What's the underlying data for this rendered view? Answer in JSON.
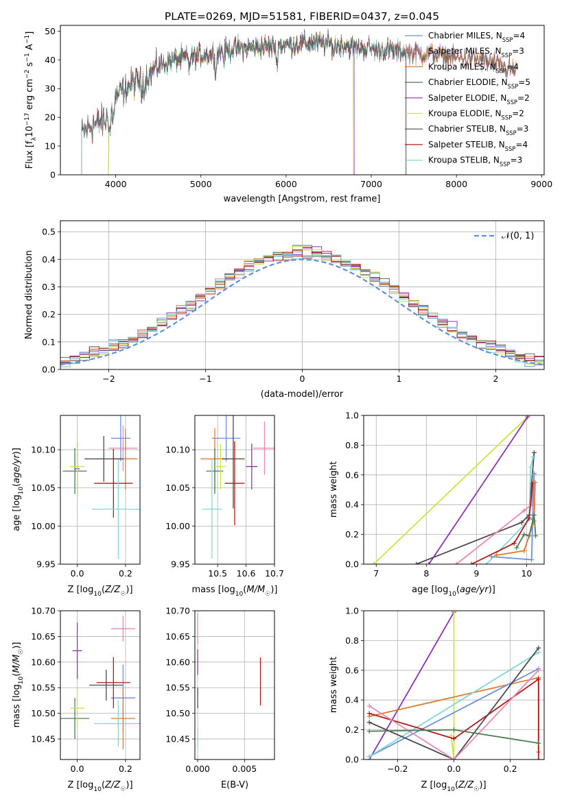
{
  "figure_title": "PLATE=0269, MJD=51581, FIBERID=0437, z=0.045",
  "colors": {
    "Chabrier MILES": "#6a8ee0",
    "Salpeter MILES": "#e887b0",
    "Kroupa MILES": "#dd7a2a",
    "Chabrier ELODIE": "#4f7a54",
    "Salpeter ELODIE": "#8f2fb0",
    "Kroupa ELODIE": "#c8e640",
    "Chabrier STELIB": "#4a4a4a",
    "Salpeter STELIB": "#b31818",
    "Kroupa STELIB": "#7fd6d6"
  },
  "chart_data": [
    {
      "id": "spectrum",
      "type": "line",
      "title": "PLATE=0269, MJD=51581, FIBERID=0437, z=0.045",
      "xlabel": "wavelength [Angstrom, rest frame]",
      "ylabel": "Flux [f_λ 10^-17 erg cm^-2 s^-1 A^-1]",
      "xlim": [
        3350,
        9030
      ],
      "ylim": [
        0,
        52
      ],
      "xticks": [
        4000,
        5000,
        6000,
        7000,
        8000,
        9000
      ],
      "yticks": [
        0,
        10,
        20,
        30,
        40,
        50
      ],
      "grid": false,
      "legend_placement": "right",
      "legend": [
        {
          "name": "Chabrier MILES",
          "nssp": "4"
        },
        {
          "name": "Salpeter MILES",
          "nssp": "3"
        },
        {
          "name": "Kroupa MILES",
          "nssp": "4"
        },
        {
          "name": "Chabrier ELODIE",
          "nssp": "5"
        },
        {
          "name": "Salpeter ELODIE",
          "nssp": "2"
        },
        {
          "name": "Kroupa ELODIE",
          "nssp": "2"
        },
        {
          "name": "Chabrier STELIB",
          "nssp": "3"
        },
        {
          "name": "Salpeter STELIB",
          "nssp": "4"
        },
        {
          "name": "Kroupa STELIB",
          "nssp": "3"
        }
      ],
      "continuum": {
        "x": [
          3600,
          3700,
          3800,
          3900,
          4000,
          4100,
          4200,
          4300,
          4400,
          4500,
          4700,
          4900,
          5100,
          5300,
          5500,
          5700,
          5900,
          6100,
          6300,
          6500,
          6700,
          6900,
          7100,
          7300,
          7500,
          7700,
          7900,
          8100,
          8300,
          8500,
          8600,
          8700
        ],
        "y": [
          14,
          17,
          18,
          19,
          27,
          30,
          32,
          33,
          35,
          38,
          40,
          41,
          42,
          43.5,
          44,
          44.5,
          45,
          45.5,
          46,
          45.5,
          45,
          44,
          43.5,
          43,
          42.5,
          42,
          41,
          40.5,
          40,
          38,
          37,
          36
        ]
      },
      "absorption_lines": [
        {
          "x": 3934,
          "depth": 8
        },
        {
          "x": 3968,
          "depth": 7
        },
        {
          "x": 4102,
          "depth": 4
        },
        {
          "x": 4304,
          "depth": 6
        },
        {
          "x": 4340,
          "depth": 4
        },
        {
          "x": 4861,
          "depth": 4
        },
        {
          "x": 5175,
          "depth": 9
        },
        {
          "x": 5270,
          "depth": 4
        },
        {
          "x": 5890,
          "depth": 8
        },
        {
          "x": 6563,
          "depth": 3
        }
      ],
      "model_cutoffs": [
        {
          "series": "Kroupa ELODIE",
          "start": 3915,
          "end": 6790
        },
        {
          "series": "Chabrier ELODIE",
          "start": 3915,
          "end": 6800
        },
        {
          "series": "Salpeter ELODIE",
          "start": 3915,
          "end": 6800
        },
        {
          "series": "Chabrier STELIB",
          "start": 3600,
          "end": 7410
        },
        {
          "series": "Salpeter STELIB",
          "start": 3600,
          "end": 7405
        },
        {
          "series": "Kroupa STELIB",
          "start": 3600,
          "end": 7410
        }
      ]
    },
    {
      "id": "residuals",
      "type": "histogram",
      "xlabel": "(data-model)/error",
      "ylabel": "Normed distribution",
      "xlim": [
        -2.5,
        2.5
      ],
      "ylim": [
        0,
        0.54
      ],
      "xticks": [
        -2,
        -1,
        0,
        1,
        2
      ],
      "xtick_labels": [
        "−2",
        "−1",
        "0",
        "1",
        "2"
      ],
      "yticks": [
        0.0,
        0.1,
        0.2,
        0.3,
        0.4,
        0.5
      ],
      "grid": true,
      "bin_width": 0.1,
      "reference_curve": {
        "label": "𝒩(0, 1)",
        "mean": 0,
        "sigma": 1
      },
      "legend_placement": "top-right"
    },
    {
      "id": "age-vs-z",
      "type": "errorbar",
      "xlabel": "Z [log10(Z/Z☉)]",
      "ylabel": "age  [log10(age/yr)]",
      "xlim": [
        -0.07,
        0.26
      ],
      "ylim": [
        9.95,
        10.145
      ],
      "xticks": [
        0.0,
        0.2
      ],
      "xtick_labels": [
        "0.0",
        "0.2"
      ],
      "yticks": [
        9.95,
        10.0,
        10.05,
        10.1
      ],
      "ytick_labels": [
        "9.95",
        "10.00",
        "10.05",
        "10.10"
      ],
      "grid": true,
      "points": [
        {
          "series": "Chabrier MILES",
          "x": 0.18,
          "xerr": 0.04,
          "y": 10.115,
          "yerr": 0.03
        },
        {
          "series": "Salpeter MILES",
          "x": 0.19,
          "xerr": 0.06,
          "y": 10.102,
          "yerr": 0.03
        },
        {
          "series": "Kroupa MILES",
          "x": 0.2,
          "xerr": 0.05,
          "y": 10.088,
          "yerr": 0.04
        },
        {
          "series": "Chabrier ELODIE",
          "x": -0.01,
          "xerr": 0.05,
          "y": 10.072,
          "yerr": 0.03
        },
        {
          "series": "Salpeter ELODIE",
          "x": 0.0,
          "xerr": 0.01,
          "y": 10.075,
          "yerr": 0.035
        },
        {
          "series": "Kroupa ELODIE",
          "x": 0.0,
          "xerr": 0.03,
          "y": 10.078,
          "yerr": 0.04
        },
        {
          "series": "Chabrier STELIB",
          "x": 0.11,
          "xerr": 0.08,
          "y": 10.088,
          "yerr": 0.03
        },
        {
          "series": "Salpeter STELIB",
          "x": 0.15,
          "xerr": 0.08,
          "y": 10.056,
          "yerr": 0.045
        },
        {
          "series": "Kroupa STELIB",
          "x": 0.17,
          "xerr": 0.11,
          "y": 10.022,
          "yerr": 0.065
        }
      ]
    },
    {
      "id": "age-vs-mass",
      "type": "errorbar",
      "xlabel": "mass [log10(M/M☉)]",
      "ylabel": "",
      "xlim": [
        10.42,
        10.7
      ],
      "ylim": [
        9.95,
        10.145
      ],
      "xticks": [
        10.5,
        10.6,
        10.7
      ],
      "xtick_labels": [
        "10.5",
        "10.6",
        "10.7"
      ],
      "yticks": [
        9.95,
        10.0,
        10.05,
        10.1
      ],
      "ytick_labels": [
        "9.95",
        "10.00",
        "10.05",
        "10.10"
      ],
      "grid": true,
      "points": [
        {
          "series": "Chabrier MILES",
          "x": 10.53,
          "xerr": 0.05,
          "y": 10.115,
          "yerr": 0.03
        },
        {
          "series": "Salpeter MILES",
          "x": 10.665,
          "xerr": 0.04,
          "y": 10.102,
          "yerr": 0.035
        },
        {
          "series": "Kroupa MILES",
          "x": 10.49,
          "xerr": 0.05,
          "y": 10.088,
          "yerr": 0.04
        },
        {
          "series": "Chabrier ELODIE",
          "x": 10.49,
          "xerr": 0.03,
          "y": 10.072,
          "yerr": 0.03
        },
        {
          "series": "Salpeter ELODIE",
          "x": 10.62,
          "xerr": 0.02,
          "y": 10.078,
          "yerr": 0.03
        },
        {
          "series": "Kroupa ELODIE",
          "x": 10.51,
          "xerr": 0.02,
          "y": 10.078,
          "yerr": 0.03
        },
        {
          "series": "Chabrier STELIB",
          "x": 10.555,
          "xerr": 0.04,
          "y": 10.088,
          "yerr": 0.065
        },
        {
          "series": "Salpeter STELIB",
          "x": 10.56,
          "xerr": 0.035,
          "y": 10.056,
          "yerr": 0.055
        },
        {
          "series": "Kroupa STELIB",
          "x": 10.48,
          "xerr": 0.035,
          "y": 10.022,
          "yerr": 0.065
        }
      ]
    },
    {
      "id": "mass-weight-vs-age",
      "type": "line",
      "xlabel": "age  [log10(age/yr)]",
      "ylabel": "mass weight",
      "xlim": [
        6.75,
        10.35
      ],
      "ylim": [
        0,
        1
      ],
      "xticks": [
        7,
        8,
        9,
        10
      ],
      "yticks": [
        0.0,
        0.2,
        0.4,
        0.6,
        0.8,
        1.0
      ],
      "grid": true,
      "series": [
        {
          "name": "Kroupa ELODIE",
          "x": [
            6.95,
            10.05
          ],
          "y": [
            0.0,
            1.0
          ]
        },
        {
          "name": "Salpeter ELODIE",
          "x": [
            8.05,
            10.02
          ],
          "y": [
            0.0,
            0.99
          ]
        },
        {
          "name": "Chabrier STELIB",
          "x": [
            7.8,
            9.9,
            10.05,
            10.15
          ],
          "y": [
            0.0,
            0.28,
            0.33,
            0.75
          ]
        },
        {
          "name": "Salpeter MILES",
          "x": [
            8.6,
            9.95,
            10.1,
            10.15
          ],
          "y": [
            0.0,
            0.36,
            0.4,
            0.6
          ]
        },
        {
          "name": "Kroupa STELIB",
          "x": [
            9.2,
            10.05,
            10.08,
            10.13
          ],
          "y": [
            0.0,
            0.3,
            0.65,
            0.72
          ]
        },
        {
          "name": "Salpeter STELIB",
          "x": [
            8.9,
            9.75,
            10.05,
            10.12,
            10.14
          ],
          "y": [
            0.0,
            0.14,
            0.31,
            0.54,
            0.55
          ]
        },
        {
          "name": "Chabrier MILES",
          "x": [
            9.3,
            10.1,
            10.12,
            10.15
          ],
          "y": [
            0.05,
            0.03,
            0.3,
            0.61
          ]
        },
        {
          "name": "Kroupa MILES",
          "x": [
            9.4,
            9.95,
            10.15,
            10.17
          ],
          "y": [
            0.06,
            0.09,
            0.29,
            0.55
          ]
        },
        {
          "name": "Chabrier ELODIE",
          "x": [
            9.8,
            9.95,
            10.05,
            10.15,
            10.18
          ],
          "y": [
            0.11,
            0.2,
            0.19,
            0.33,
            0.19
          ]
        }
      ]
    },
    {
      "id": "mass-vs-z",
      "type": "errorbar",
      "xlabel": "Z [log10(Z/Z☉)]",
      "ylabel": "mass [log10(M/M☉)]",
      "xlim": [
        -0.07,
        0.26
      ],
      "ylim": [
        10.41,
        10.7
      ],
      "xticks": [
        0.0,
        0.2
      ],
      "xtick_labels": [
        "0.0",
        "0.2"
      ],
      "yticks": [
        10.45,
        10.5,
        10.55,
        10.6,
        10.65,
        10.7
      ],
      "ytick_labels": [
        "10.45",
        "10.50",
        "10.55",
        "10.60",
        "10.65",
        "10.70"
      ],
      "grid": true,
      "points": [
        {
          "series": "Chabrier MILES",
          "x": 0.19,
          "xerr": 0.05,
          "y": 10.53,
          "yerr": 0.065
        },
        {
          "series": "Salpeter MILES",
          "x": 0.19,
          "xerr": 0.05,
          "y": 10.665,
          "yerr": 0.025
        },
        {
          "series": "Kroupa MILES",
          "x": 0.19,
          "xerr": 0.05,
          "y": 10.49,
          "yerr": 0.06
        },
        {
          "series": "Chabrier ELODIE",
          "x": -0.01,
          "xerr": 0.06,
          "y": 10.49,
          "yerr": 0.04
        },
        {
          "series": "Salpeter ELODIE",
          "x": 0.0,
          "xerr": 0.02,
          "y": 10.622,
          "yerr": 0.055
        },
        {
          "series": "Kroupa ELODIE",
          "x": 0.0,
          "xerr": 0.03,
          "y": 10.51,
          "yerr": 0.04
        },
        {
          "series": "Chabrier STELIB",
          "x": 0.12,
          "xerr": 0.07,
          "y": 10.555,
          "yerr": 0.03
        },
        {
          "series": "Salpeter STELIB",
          "x": 0.15,
          "xerr": 0.07,
          "y": 10.56,
          "yerr": 0.05
        },
        {
          "series": "Kroupa STELIB",
          "x": 0.17,
          "xerr": 0.1,
          "y": 10.48,
          "yerr": 0.045
        }
      ]
    },
    {
      "id": "mass-vs-ebv",
      "type": "errorbar",
      "xlabel": "E(B-V)",
      "ylabel": "",
      "xlim": [
        -0.0003,
        0.0082
      ],
      "ylim": [
        10.41,
        10.7
      ],
      "xticks": [
        0.0,
        0.005
      ],
      "xtick_labels": [
        "0.000",
        "0.005"
      ],
      "yticks": [
        10.45,
        10.5,
        10.55,
        10.6,
        10.65,
        10.7
      ],
      "ytick_labels": [
        "10.45",
        "10.50",
        "10.55",
        "10.60",
        "10.65",
        "10.70"
      ],
      "grid": true,
      "points": [
        {
          "series": "Salpeter MILES",
          "x": 0.0,
          "xerr": 0,
          "y": 10.665,
          "yerr": 0.03
        },
        {
          "series": "Salpeter ELODIE",
          "x": 0.0,
          "xerr": 0,
          "y": 10.6,
          "yerr": 0.025
        },
        {
          "series": "Chabrier STELIB",
          "x": 0.0,
          "xerr": 0,
          "y": 10.53,
          "yerr": 0.02
        },
        {
          "series": "Kroupa STELIB",
          "x": 0.0,
          "xerr": 0,
          "y": 10.45,
          "yerr": 0.02
        },
        {
          "series": "Salpeter STELIB",
          "x": 0.0067,
          "xerr": 0,
          "y": 10.562,
          "yerr": 0.047
        }
      ]
    },
    {
      "id": "mass-weight-vs-z",
      "type": "line",
      "xlabel": "Z [log10(Z/Z☉)]",
      "ylabel": "mass weight",
      "xlim": [
        -0.32,
        0.32
      ],
      "ylim": [
        0,
        1
      ],
      "xticks": [
        -0.2,
        0.0,
        0.2
      ],
      "xtick_labels": [
        "−0.2",
        "0.0",
        "0.2"
      ],
      "yticks": [
        0.0,
        0.2,
        0.4,
        0.6,
        0.8,
        1.0
      ],
      "grid": true,
      "series": [
        {
          "name": "Salpeter ELODIE",
          "x": [
            -0.3,
            0.0
          ],
          "y": [
            0.0,
            0.99
          ]
        },
        {
          "name": "Kroupa ELODIE",
          "x": [
            0.0,
            0.0,
            -0.01
          ],
          "y": [
            1.0,
            0.0,
            0.16
          ]
        },
        {
          "name": "Kroupa MILES",
          "x": [
            -0.3,
            0.3,
            0.3
          ],
          "y": [
            0.29,
            0.55,
            0.05
          ]
        },
        {
          "name": "Chabrier MILES",
          "x": [
            -0.3,
            0.3
          ],
          "y": [
            0.02,
            0.61
          ]
        },
        {
          "name": "Kroupa STELIB",
          "x": [
            -0.3,
            0.3
          ],
          "y": [
            0.02,
            0.72
          ]
        },
        {
          "name": "Salpeter STELIB",
          "x": [
            -0.3,
            0.0,
            0.3,
            0.3
          ],
          "y": [
            0.31,
            0.14,
            0.54,
            0.0
          ]
        },
        {
          "name": "Chabrier STELIB",
          "x": [
            -0.3,
            0.0,
            0.3
          ],
          "y": [
            0.25,
            0.0,
            0.75
          ]
        },
        {
          "name": "Salpeter MILES",
          "x": [
            -0.3,
            0.0,
            0.3
          ],
          "y": [
            0.36,
            0.0,
            0.6
          ]
        },
        {
          "name": "Chabrier ELODIE",
          "x": [
            -0.3,
            0.0,
            0.3
          ],
          "y": [
            0.19,
            0.2,
            0.11
          ]
        }
      ]
    }
  ]
}
